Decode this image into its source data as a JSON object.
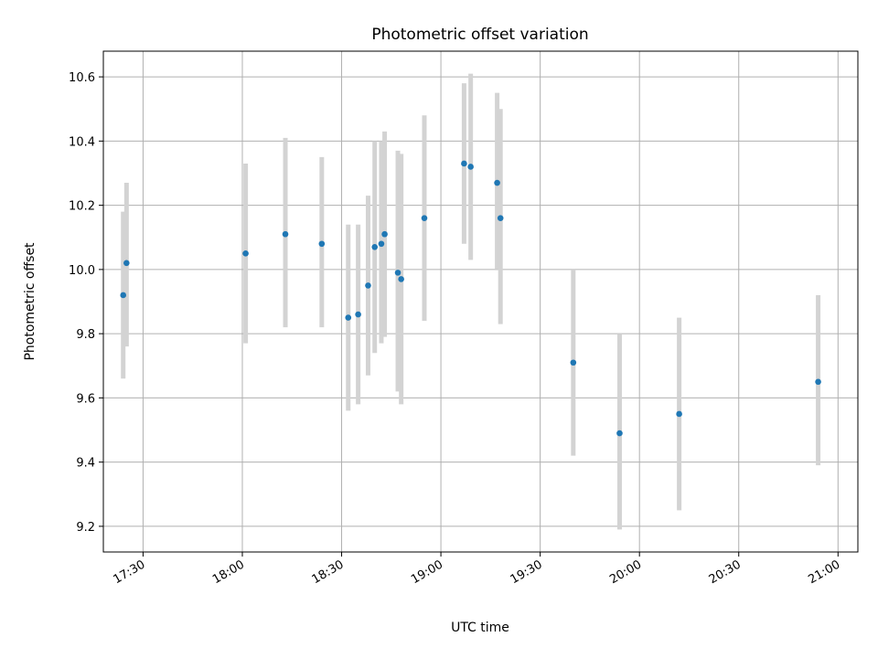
{
  "chart_data": {
    "type": "scatter",
    "title": "Photometric offset variation",
    "xlabel": "UTC time",
    "ylabel": "Photometric offset",
    "x_scale": "time",
    "xlim": [
      "17:18",
      "21:06"
    ],
    "ylim": [
      9.12,
      10.68
    ],
    "x_ticks": [
      "17:30",
      "18:00",
      "18:30",
      "19:00",
      "19:30",
      "20:00",
      "20:30",
      "21:00"
    ],
    "y_ticks": [
      9.2,
      9.4,
      9.6,
      9.8,
      10.0,
      10.2,
      10.4,
      10.6
    ],
    "y_tick_labels": [
      "9.2",
      "9.4",
      "9.6",
      "9.8",
      "10.0",
      "10.2",
      "10.4",
      "10.6"
    ],
    "grid": true,
    "colors": {
      "point": "#1f77b4",
      "errorbar": "#d3d3d3",
      "grid": "#b0b0b0"
    },
    "series": [
      {
        "points": [
          {
            "x": "17:24",
            "y": 9.92,
            "ylo": 9.66,
            "yhi": 10.18
          },
          {
            "x": "17:25",
            "y": 10.02,
            "ylo": 9.76,
            "yhi": 10.27
          },
          {
            "x": "18:01",
            "y": 10.05,
            "ylo": 9.77,
            "yhi": 10.33
          },
          {
            "x": "18:13",
            "y": 10.11,
            "ylo": 9.82,
            "yhi": 10.41
          },
          {
            "x": "18:24",
            "y": 10.08,
            "ylo": 9.82,
            "yhi": 10.35
          },
          {
            "x": "18:32",
            "y": 9.85,
            "ylo": 9.56,
            "yhi": 10.14
          },
          {
            "x": "18:35",
            "y": 9.86,
            "ylo": 9.58,
            "yhi": 10.14
          },
          {
            "x": "18:38",
            "y": 9.95,
            "ylo": 9.67,
            "yhi": 10.23
          },
          {
            "x": "18:40",
            "y": 10.07,
            "ylo": 9.74,
            "yhi": 10.4
          },
          {
            "x": "18:42",
            "y": 10.08,
            "ylo": 9.77,
            "yhi": 10.4
          },
          {
            "x": "18:43",
            "y": 10.11,
            "ylo": 9.79,
            "yhi": 10.43
          },
          {
            "x": "18:47",
            "y": 9.99,
            "ylo": 9.62,
            "yhi": 10.37
          },
          {
            "x": "18:48",
            "y": 9.97,
            "ylo": 9.58,
            "yhi": 10.36
          },
          {
            "x": "18:55",
            "y": 10.16,
            "ylo": 9.84,
            "yhi": 10.48
          },
          {
            "x": "19:07",
            "y": 10.33,
            "ylo": 10.08,
            "yhi": 10.58
          },
          {
            "x": "19:09",
            "y": 10.32,
            "ylo": 10.03,
            "yhi": 10.61
          },
          {
            "x": "19:17",
            "y": 10.27,
            "ylo": 10.0,
            "yhi": 10.55
          },
          {
            "x": "19:18",
            "y": 10.16,
            "ylo": 9.83,
            "yhi": 10.5
          },
          {
            "x": "19:40",
            "y": 9.71,
            "ylo": 9.42,
            "yhi": 10.0
          },
          {
            "x": "19:54",
            "y": 9.49,
            "ylo": 9.19,
            "yhi": 9.8
          },
          {
            "x": "20:12",
            "y": 9.55,
            "ylo": 9.25,
            "yhi": 9.85
          },
          {
            "x": "20:54",
            "y": 9.65,
            "ylo": 9.39,
            "yhi": 9.92
          }
        ]
      }
    ]
  }
}
